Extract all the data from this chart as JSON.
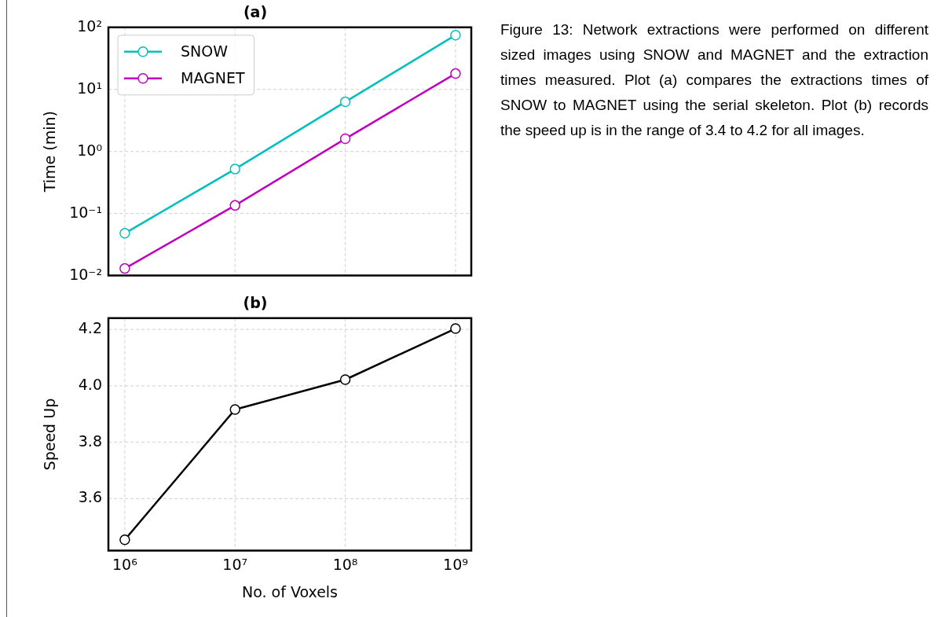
{
  "chart_data": [
    {
      "type": "line",
      "title": "(a)",
      "ylabel": "Time (min)",
      "log": "xy",
      "x": [
        1000000,
        10000000,
        100000000,
        1000000000
      ],
      "series": [
        {
          "name": "SNOW",
          "color": "#00bfbf",
          "values": [
            0.048,
            0.52,
            6.3,
            75
          ]
        },
        {
          "name": "MAGNET",
          "color": "#bf00bf",
          "values": [
            0.013,
            0.135,
            1.6,
            18
          ]
        }
      ],
      "xlim": [
        710000,
        1390000000
      ],
      "xticks": [
        {
          "value": 1000000,
          "label": null
        },
        {
          "value": 10000000,
          "label": null
        },
        {
          "value": 100000000,
          "label": null
        },
        {
          "value": 1000000000,
          "label": null
        }
      ],
      "ylim": [
        0.01,
        100
      ],
      "yticks": [
        {
          "value": 0.01,
          "label": "10⁻²"
        },
        {
          "value": 0.1,
          "label": "10⁻¹"
        },
        {
          "value": 1,
          "label": "10⁰"
        },
        {
          "value": 10,
          "label": "10¹"
        },
        {
          "value": 100,
          "label": "10²"
        }
      ],
      "tick_labels": "y",
      "grid": true,
      "legend": "top left",
      "marker": "circle",
      "line_style": "solid",
      "annotations": [
        "Figure 13: Network extractions were performed on different sized images using SNOW and MAGNET and the extraction times measured. Plot (a) compares the extractions times of SNOW to MAGNET using the serial skeleton. Plot (b) records the speed up is in the range of 3.4 to 4.2 for all images."
      ]
    },
    {
      "type": "line",
      "title": "(b)",
      "xlabel": "No. of Voxels",
      "ylabel": "Speed Up",
      "log": "x",
      "x": [
        1000000,
        10000000,
        100000000,
        1000000000
      ],
      "series": [
        {
          "color": "#000000",
          "values": [
            3.454,
            3.916,
            4.022,
            4.203
          ]
        }
      ],
      "xlim": [
        710000,
        1390000000
      ],
      "xticks": [
        {
          "value": 1000000,
          "label": "10⁶"
        },
        {
          "value": 10000000,
          "label": "10⁷"
        },
        {
          "value": 100000000,
          "label": "10⁸"
        },
        {
          "value": 1000000000,
          "label": "10⁹"
        }
      ],
      "ylim": [
        3.416,
        4.24
      ],
      "yticks": [
        3.6,
        3.8,
        {
          "value": 4.0,
          "label": "4.0"
        },
        4.2
      ],
      "grid": true,
      "marker": "circle",
      "line_style": "solid"
    }
  ]
}
